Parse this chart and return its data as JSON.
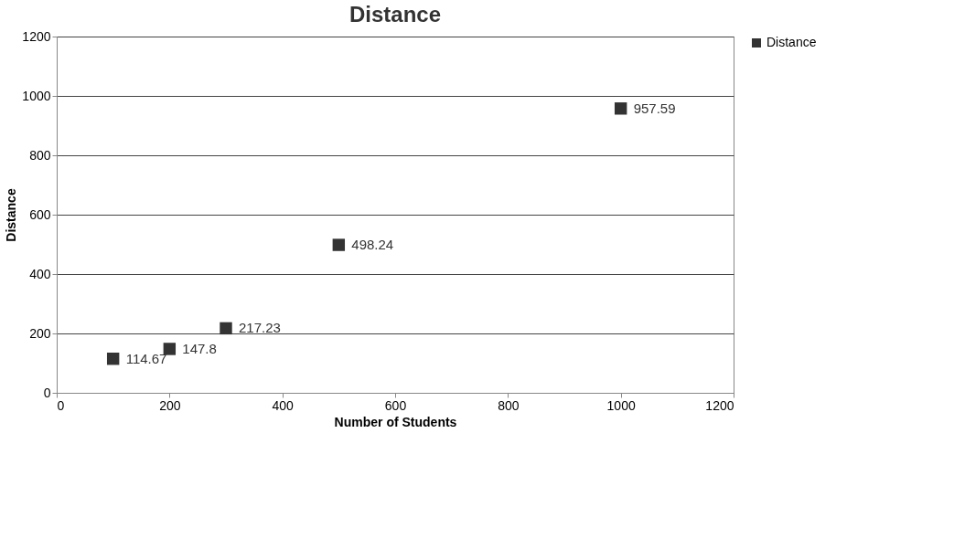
{
  "chart_data": {
    "type": "scatter",
    "title": "Distance",
    "xlabel": "Number of Students",
    "ylabel": "Distance",
    "x": [
      100,
      200,
      300,
      500,
      1000
    ],
    "series": [
      {
        "name": "Distance",
        "color": "#333333",
        "values": [
          114.67,
          147.8,
          217.23,
          498.24,
          957.59
        ]
      }
    ],
    "xlim": [
      0,
      1200
    ],
    "ylim": [
      0,
      1200
    ],
    "xticks": [
      0,
      200,
      400,
      600,
      800,
      1000,
      1200
    ],
    "yticks": [
      0,
      200,
      400,
      600,
      800,
      1000,
      1200
    ],
    "grid": "y",
    "legend": "right",
    "marker": "square",
    "data_labels": true
  }
}
